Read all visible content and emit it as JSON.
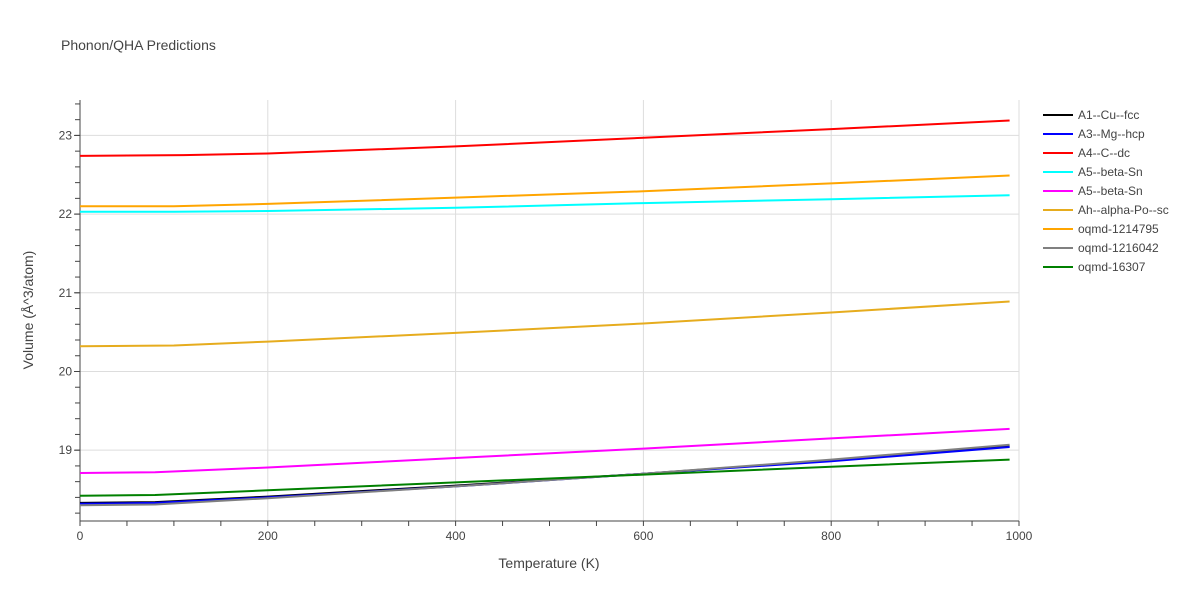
{
  "chart_data": {
    "type": "line",
    "title": "Phonon/QHA Predictions",
    "xlabel": "Temperature (K)",
    "ylabel": "Volume (Å^3/atom)",
    "xlim": [
      0,
      1000
    ],
    "ylim": [
      18.1,
      23.45
    ],
    "xticks": [
      0,
      200,
      400,
      600,
      800,
      1000
    ],
    "yticks": [
      19,
      20,
      21,
      22,
      23
    ],
    "grid": true,
    "legend_position": "right",
    "series": [
      {
        "name": "A1--Cu--fcc",
        "color": "#000000",
        "x": [
          0,
          80,
          200,
          400,
          600,
          800,
          990
        ],
        "y": [
          18.33,
          18.34,
          18.41,
          18.55,
          18.7,
          18.87,
          19.05
        ]
      },
      {
        "name": "A3--Mg--hcp",
        "color": "#0000ff",
        "x": [
          0,
          80,
          200,
          400,
          600,
          800,
          990
        ],
        "y": [
          18.32,
          18.33,
          18.4,
          18.54,
          18.7,
          18.86,
          19.04
        ]
      },
      {
        "name": "A4--C--dc",
        "color": "#ff0000",
        "x": [
          0,
          110,
          200,
          400,
          600,
          800,
          990
        ],
        "y": [
          22.74,
          22.75,
          22.77,
          22.86,
          22.97,
          23.08,
          23.19
        ]
      },
      {
        "name": "A5--beta-Sn",
        "color": "#00ffff",
        "x": [
          0,
          100,
          200,
          400,
          600,
          800,
          990
        ],
        "y": [
          22.03,
          22.03,
          22.04,
          22.08,
          22.14,
          22.19,
          22.24
        ]
      },
      {
        "name": "A5--beta-Sn",
        "color": "#ff00ff",
        "x": [
          0,
          80,
          200,
          400,
          600,
          800,
          990
        ],
        "y": [
          18.71,
          18.72,
          18.78,
          18.9,
          19.02,
          19.15,
          19.27
        ]
      },
      {
        "name": "Ah--alpha-Po--sc",
        "color": "#e6ac1e",
        "x": [
          0,
          100,
          200,
          400,
          600,
          800,
          990
        ],
        "y": [
          20.32,
          20.33,
          20.38,
          20.49,
          20.61,
          20.75,
          20.89
        ]
      },
      {
        "name": "oqmd-1214795",
        "color": "#ffa500",
        "x": [
          0,
          100,
          200,
          400,
          600,
          800,
          990
        ],
        "y": [
          22.1,
          22.1,
          22.13,
          22.21,
          22.29,
          22.39,
          22.49
        ]
      },
      {
        "name": "oqmd-1216042",
        "color": "#808080",
        "x": [
          0,
          80,
          200,
          400,
          600,
          800,
          990
        ],
        "y": [
          18.3,
          18.31,
          18.39,
          18.54,
          18.7,
          18.88,
          19.07
        ]
      },
      {
        "name": "oqmd-16307",
        "color": "#008000",
        "x": [
          0,
          80,
          200,
          400,
          600,
          800,
          990
        ],
        "y": [
          18.42,
          18.43,
          18.49,
          18.59,
          18.69,
          18.79,
          18.88
        ]
      }
    ]
  }
}
